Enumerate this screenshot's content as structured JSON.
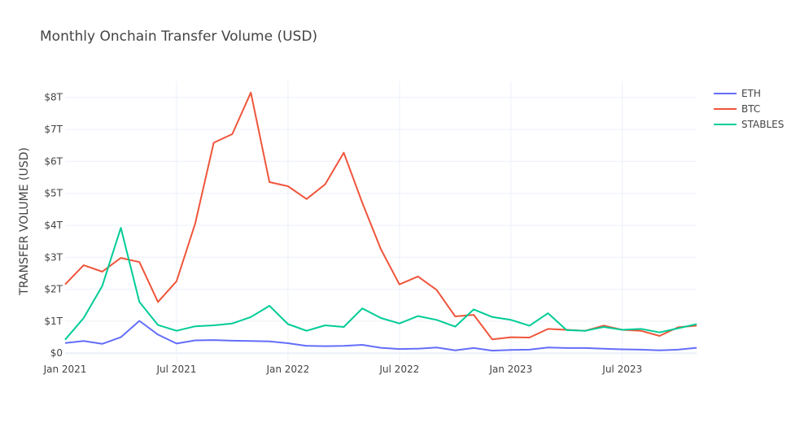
{
  "chart_data": {
    "type": "line",
    "title": "Monthly Onchain Transfer Volume (USD)",
    "xlabel": "",
    "ylabel": "TRANSFER VOLUME (USD)",
    "x": [
      "2021-01",
      "2021-02",
      "2021-03",
      "2021-04",
      "2021-05",
      "2021-06",
      "2021-07",
      "2021-08",
      "2021-09",
      "2021-10",
      "2021-11",
      "2021-12",
      "2022-01",
      "2022-02",
      "2022-03",
      "2022-04",
      "2022-05",
      "2022-06",
      "2022-07",
      "2022-08",
      "2022-09",
      "2022-10",
      "2022-11",
      "2022-12",
      "2023-01",
      "2023-02",
      "2023-03",
      "2023-04",
      "2023-05",
      "2023-06",
      "2023-07",
      "2023-08",
      "2023-09",
      "2023-10",
      "2023-11"
    ],
    "x_ticks": [
      "2021-01",
      "2021-07",
      "2022-01",
      "2022-07",
      "2023-01",
      "2023-07"
    ],
    "x_tick_labels": [
      "Jan 2021",
      "Jul 2021",
      "Jan 2022",
      "Jul 2022",
      "Jan 2023",
      "Jul 2023"
    ],
    "ylim": [
      -0.35,
      8.5
    ],
    "y_ticks": [
      0,
      1,
      2,
      3,
      4,
      5,
      6,
      7,
      8
    ],
    "y_tick_labels": [
      "$0",
      "$1T",
      "$2T",
      "$3T",
      "$4T",
      "$5T",
      "$6T",
      "$7T",
      "$8T"
    ],
    "grid": true,
    "legend_position": "top-right",
    "series": [
      {
        "name": "ETH",
        "color": "#636efa",
        "values": [
          0.32,
          0.38,
          0.29,
          0.5,
          1.01,
          0.58,
          0.3,
          0.4,
          0.41,
          0.39,
          0.38,
          0.37,
          0.31,
          0.23,
          0.22,
          0.23,
          0.26,
          0.17,
          0.13,
          0.14,
          0.18,
          0.09,
          0.16,
          0.08,
          0.1,
          0.11,
          0.18,
          0.16,
          0.16,
          0.14,
          0.12,
          0.11,
          0.09,
          0.11,
          0.17
        ]
      },
      {
        "name": "BTC",
        "color": "#ef553b",
        "values": [
          2.15,
          2.75,
          2.55,
          2.98,
          2.85,
          1.6,
          2.25,
          4.05,
          6.58,
          6.85,
          8.15,
          5.35,
          5.22,
          4.82,
          5.28,
          6.27,
          4.7,
          3.25,
          2.15,
          2.4,
          1.98,
          1.15,
          1.2,
          0.43,
          0.5,
          0.49,
          0.76,
          0.73,
          0.7,
          0.86,
          0.73,
          0.7,
          0.54,
          0.81,
          0.86
        ]
      },
      {
        "name": "STABLES",
        "color": "#00cc96",
        "values": [
          0.42,
          1.1,
          2.1,
          3.92,
          1.6,
          0.88,
          0.7,
          0.84,
          0.87,
          0.93,
          1.13,
          1.48,
          0.91,
          0.7,
          0.87,
          0.82,
          1.4,
          1.1,
          0.93,
          1.16,
          1.04,
          0.83,
          1.37,
          1.13,
          1.04,
          0.86,
          1.25,
          0.72,
          0.7,
          0.82,
          0.73,
          0.76,
          0.65,
          0.78,
          0.91
        ]
      }
    ]
  }
}
